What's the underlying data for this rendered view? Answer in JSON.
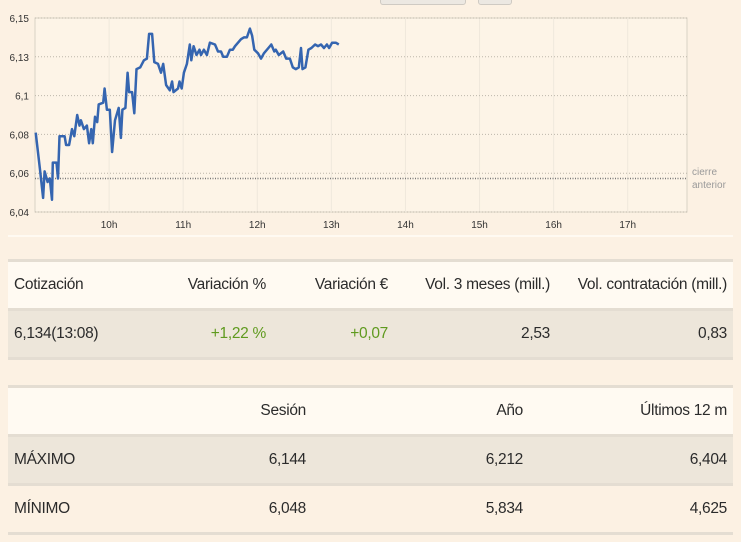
{
  "chart_data": {
    "type": "line",
    "title": "",
    "xlabel": "",
    "ylabel": "",
    "xlim": [
      9.0,
      17.8
    ],
    "ylim": [
      6.04,
      6.15
    ],
    "grid": true,
    "x_ticks": [
      {
        "value": 10,
        "label": "10h"
      },
      {
        "value": 11,
        "label": "11h"
      },
      {
        "value": 12,
        "label": "12h"
      },
      {
        "value": 13,
        "label": "13h"
      },
      {
        "value": 14,
        "label": "14h"
      },
      {
        "value": 15,
        "label": "15h"
      },
      {
        "value": 16,
        "label": "16h"
      },
      {
        "value": 17,
        "label": "17h"
      }
    ],
    "y_ticks": [
      {
        "value": 6.15,
        "label": "6,15"
      },
      {
        "value": 6.128,
        "label": "6,13"
      },
      {
        "value": 6.106,
        "label": "6,1"
      },
      {
        "value": 6.084,
        "label": "6,08"
      },
      {
        "value": 6.062,
        "label": "6,06"
      },
      {
        "value": 6.04,
        "label": "6,04"
      }
    ],
    "reference_line": {
      "value": 6.059,
      "label_line1": "cierre",
      "label_line2": "anterior"
    },
    "series": [
      {
        "name": "Cotización",
        "color": "#3565b0",
        "x": [
          9.01,
          9.07,
          9.11,
          9.13,
          9.17,
          9.2,
          9.23,
          9.24,
          9.29,
          9.31,
          9.33,
          9.4,
          9.42,
          9.46,
          9.5,
          9.53,
          9.57,
          9.6,
          9.62,
          9.66,
          9.7,
          9.73,
          9.76,
          9.78,
          9.81,
          9.84,
          9.86,
          9.92,
          9.94,
          9.97,
          10.01,
          10.04,
          10.08,
          10.13,
          10.16,
          10.18,
          10.22,
          10.25,
          10.27,
          10.31,
          10.34,
          10.37,
          10.42,
          10.47,
          10.51,
          10.54,
          10.58,
          10.61,
          10.66,
          10.7,
          10.73,
          10.77,
          10.82,
          10.85,
          10.87,
          10.93,
          10.95,
          10.98,
          11.01,
          11.05,
          11.09,
          11.11,
          11.14,
          11.18,
          11.22,
          11.24,
          11.28,
          11.32,
          11.36,
          11.43,
          11.47,
          11.51,
          11.54,
          11.59,
          11.63,
          11.67,
          11.7,
          11.74,
          11.78,
          11.82,
          11.86,
          11.9,
          11.93,
          11.96,
          12.01,
          12.05,
          12.09,
          12.15,
          12.19,
          12.23,
          12.25,
          12.29,
          12.35,
          12.39,
          12.44,
          12.48,
          12.52,
          12.56,
          12.59,
          12.61,
          12.65,
          12.69,
          12.73,
          12.78,
          12.82,
          12.86,
          12.9,
          12.94,
          12.97,
          13.01,
          13.06,
          13.1
        ],
        "y": [
          6.085,
          6.063,
          6.048,
          6.063,
          6.057,
          6.059,
          6.047,
          6.068,
          6.068,
          6.059,
          6.083,
          6.083,
          6.078,
          6.078,
          6.087,
          6.083,
          6.095,
          6.089,
          6.092,
          6.087,
          6.089,
          6.079,
          6.087,
          6.079,
          6.094,
          6.091,
          6.101,
          6.102,
          6.11,
          6.098,
          6.098,
          6.074,
          6.092,
          6.099,
          6.082,
          6.098,
          6.099,
          6.119,
          6.108,
          6.108,
          6.096,
          6.121,
          6.122,
          6.126,
          6.127,
          6.141,
          6.141,
          6.125,
          6.124,
          6.119,
          6.124,
          6.112,
          6.109,
          6.114,
          6.108,
          6.11,
          6.114,
          6.11,
          6.119,
          6.124,
          6.135,
          6.126,
          6.134,
          6.129,
          6.132,
          6.129,
          6.132,
          6.129,
          6.136,
          6.135,
          6.131,
          6.131,
          6.128,
          6.128,
          6.132,
          6.132,
          6.134,
          6.136,
          6.138,
          6.139,
          6.139,
          6.144,
          6.14,
          6.132,
          6.13,
          6.127,
          6.13,
          6.133,
          6.135,
          6.131,
          6.132,
          6.129,
          6.131,
          6.127,
          6.127,
          6.122,
          6.121,
          6.122,
          6.133,
          6.121,
          6.122,
          6.132,
          6.133,
          6.135,
          6.134,
          6.135,
          6.133,
          6.135,
          6.133,
          6.136,
          6.136,
          6.135
        ]
      }
    ]
  },
  "quote_table": {
    "headers": [
      "Cotización",
      "Variación %",
      "Variación €",
      "Vol. 3 meses (mill.)",
      "Vol. contratación (mill.)"
    ],
    "values": [
      "6,134(13:08)",
      "+1,22 %",
      "+0,07",
      "2,53",
      "0,83"
    ]
  },
  "range_table": {
    "headers": [
      "",
      "Sesión",
      "Año",
      "Últimos 12 m"
    ],
    "rows": [
      {
        "label": "MÁXIMO",
        "values": [
          "6,144",
          "6,212",
          "6,404"
        ]
      },
      {
        "label": "MÍNIMO",
        "values": [
          "6,048",
          "5,834",
          "4,625"
        ]
      }
    ]
  }
}
